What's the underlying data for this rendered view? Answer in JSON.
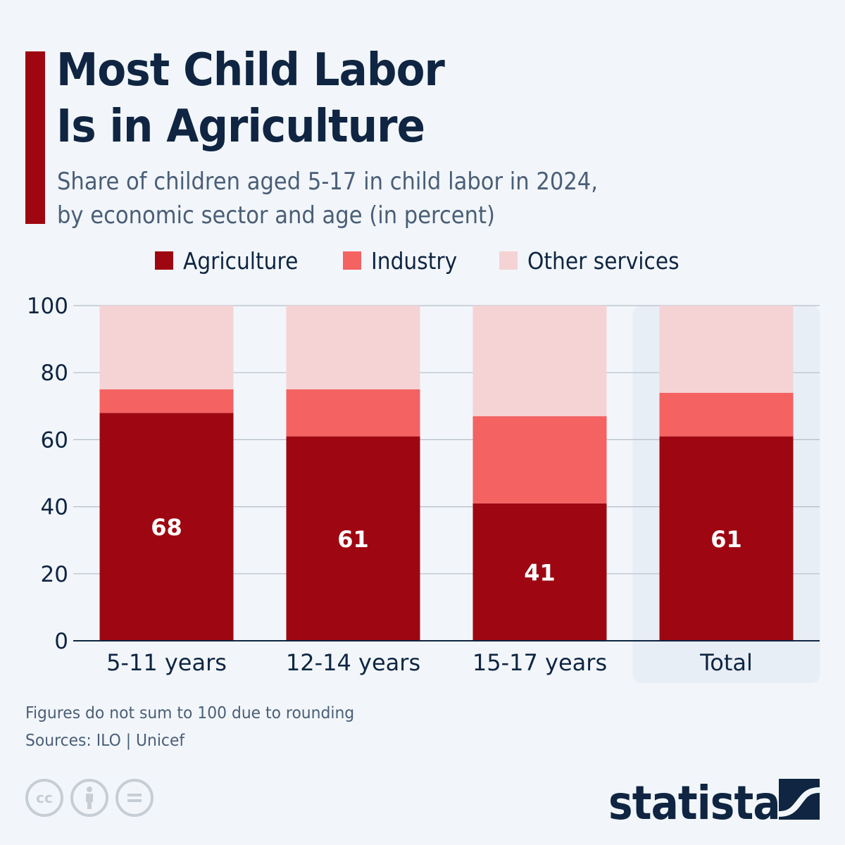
{
  "header": {
    "title": "Most Child Labor\nIs in Agriculture",
    "subtitle": "Share of children aged 5-17 in child labor in 2024,\nby economic sector and age (in percent)"
  },
  "colors": {
    "accent": "#9e0711",
    "agriculture": "#9e0711",
    "industry": "#f46262",
    "other_services": "#f5d3d4",
    "highlight_band": "#e8eef5",
    "grid": "#b3bcc7",
    "axis": "#0f2542",
    "text": "#0f2542"
  },
  "legend": [
    {
      "label": "Agriculture",
      "color": "#9e0711"
    },
    {
      "label": "Industry",
      "color": "#f46262"
    },
    {
      "label": "Other services",
      "color": "#f5d3d4"
    }
  ],
  "chart_data": {
    "type": "bar",
    "stacked": true,
    "title": "Most Child Labor Is in Agriculture",
    "subtitle": "Share of children aged 5-17 in child labor in 2024, by economic sector and age (in percent)",
    "xlabel": "",
    "ylabel": "",
    "ylim": [
      0,
      100
    ],
    "yticks": [
      0,
      20,
      40,
      60,
      80,
      100
    ],
    "grid": true,
    "legend_position": "top",
    "categories": [
      "5-11 years",
      "12-14 years",
      "15-17 years",
      "Total"
    ],
    "highlighted_category": "Total",
    "series": [
      {
        "name": "Agriculture",
        "values": [
          68,
          61,
          41,
          61
        ],
        "show_labels": true
      },
      {
        "name": "Industry",
        "values": [
          7,
          14,
          26,
          13
        ],
        "show_labels": false
      },
      {
        "name": "Other services",
        "values": [
          25,
          25,
          33,
          26
        ],
        "show_labels": false
      }
    ]
  },
  "footer": {
    "note": "Figures do not sum to 100 due to rounding",
    "source": "Sources: ILO | Unicef",
    "license_icons": [
      "cc-icon",
      "attribution-icon",
      "no-derivatives-icon"
    ],
    "cc_text": "cc",
    "brand": "statista"
  }
}
